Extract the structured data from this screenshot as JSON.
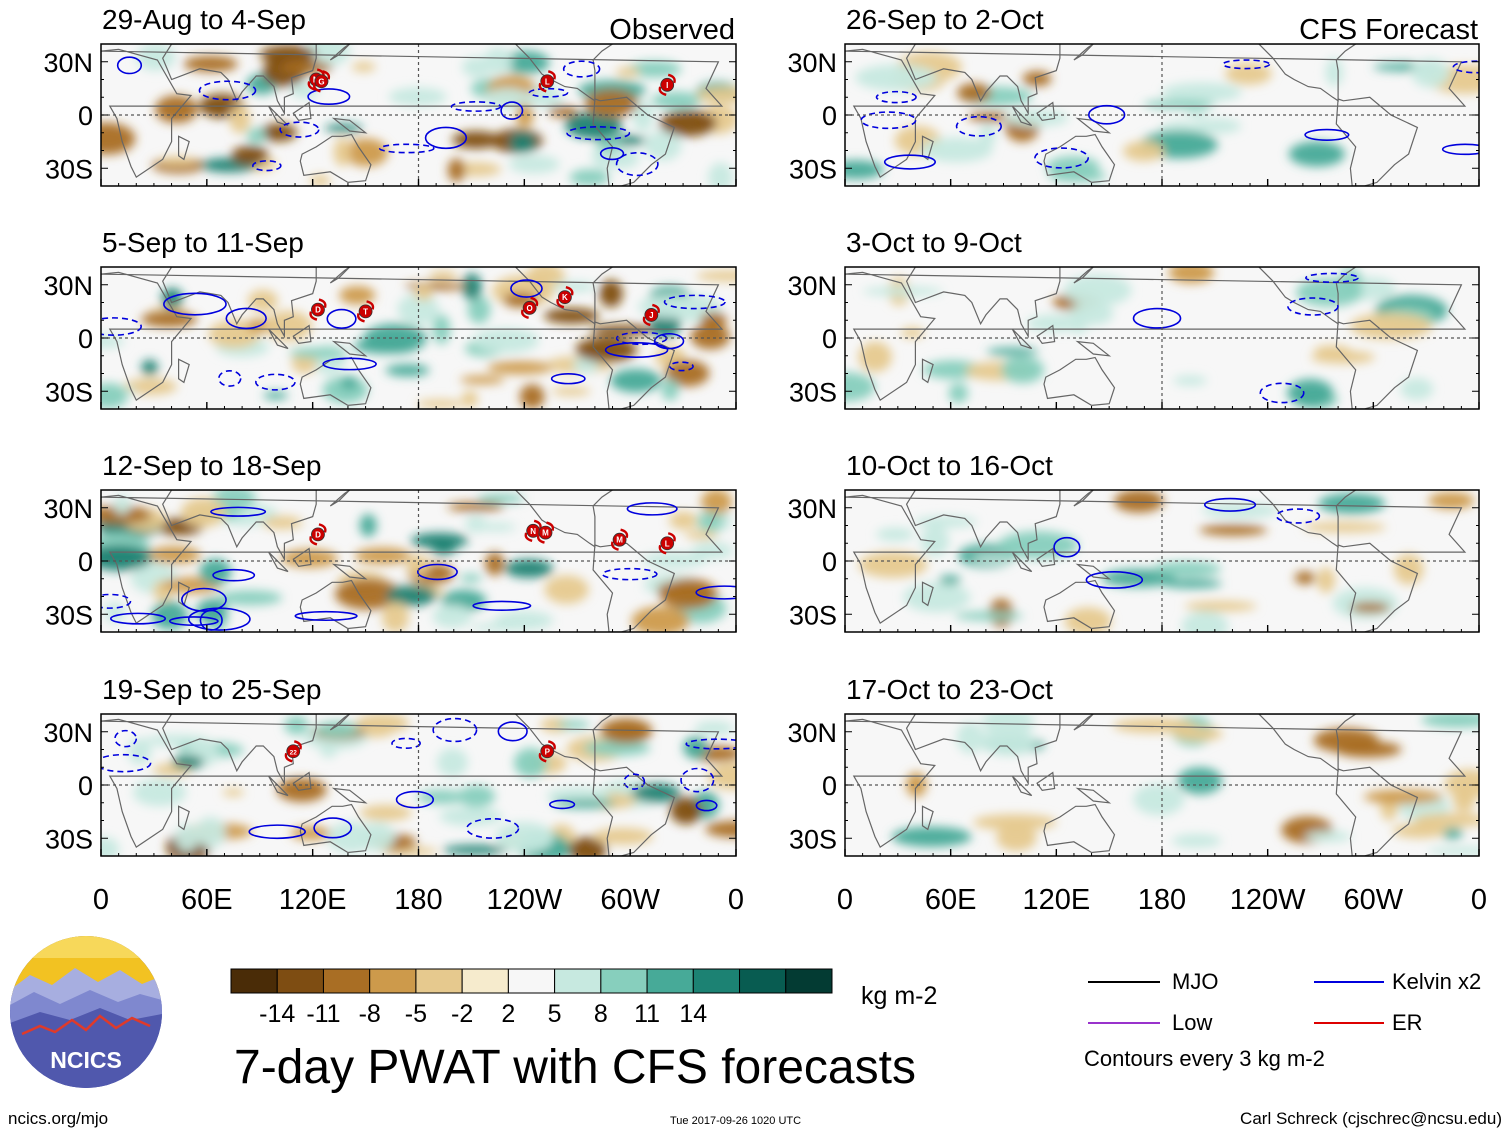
{
  "chart_data": {
    "type": "heatmap",
    "title": "7-day PWAT with CFS forecasts",
    "column_titles": {
      "left": "Observed",
      "right": "CFS Forecast"
    },
    "x_tick_labels": [
      "0",
      "60E",
      "120E",
      "180",
      "120W",
      "60W",
      "0"
    ],
    "y_tick_labels": [
      "30N",
      "0",
      "30S"
    ],
    "x_range_deg_east": [
      0,
      360
    ],
    "y_range_deg_lat": [
      -40,
      40
    ],
    "dashed_reference_lines": {
      "longitude_deg_east": 180,
      "latitude_deg": 0
    },
    "panels": [
      {
        "period": "29-Aug to 4-Sep",
        "column": "left",
        "kind": "observed",
        "storms": [
          {
            "label": "M",
            "lon": 122,
            "lat": 20
          },
          {
            "label": "G",
            "lon": 125,
            "lat": 19
          },
          {
            "label": "L",
            "lon": 253,
            "lat": 19
          },
          {
            "label": "I",
            "lon": 321,
            "lat": 17
          }
        ]
      },
      {
        "period": "5-Sep to 11-Sep",
        "column": "left",
        "kind": "observed",
        "storms": [
          {
            "label": "D",
            "lon": 123,
            "lat": 16
          },
          {
            "label": "T",
            "lon": 150,
            "lat": 15
          },
          {
            "label": "O",
            "lon": 243,
            "lat": 17
          },
          {
            "label": "K",
            "lon": 263,
            "lat": 23
          },
          {
            "label": "J",
            "lon": 312,
            "lat": 13
          }
        ]
      },
      {
        "period": "12-Sep to 18-Sep",
        "column": "left",
        "kind": "observed",
        "storms": [
          {
            "label": "D",
            "lon": 123,
            "lat": 15
          },
          {
            "label": "N",
            "lon": 245,
            "lat": 17
          },
          {
            "label": "M",
            "lon": 252,
            "lat": 16
          },
          {
            "label": "M",
            "lon": 294,
            "lat": 12
          },
          {
            "label": "L",
            "lon": 321,
            "lat": 10
          }
        ]
      },
      {
        "period": "19-Sep to 25-Sep",
        "column": "left",
        "kind": "observed",
        "storms": [
          {
            "label": "22",
            "lon": 109,
            "lat": 19
          },
          {
            "label": "P",
            "lon": 253,
            "lat": 19
          }
        ]
      },
      {
        "period": "26-Sep to 2-Oct",
        "column": "right",
        "kind": "forecast",
        "storms": []
      },
      {
        "period": "3-Oct to 9-Oct",
        "column": "right",
        "kind": "forecast",
        "storms": []
      },
      {
        "period": "10-Oct to 16-Oct",
        "column": "right",
        "kind": "forecast",
        "storms": []
      },
      {
        "period": "17-Oct to 23-Oct",
        "column": "right",
        "kind": "forecast",
        "storms": []
      }
    ],
    "colorbar": {
      "units": "kg m-2",
      "tick_labels": [
        "-14",
        "-11",
        "-8",
        "-5",
        "-2",
        "2",
        "5",
        "8",
        "11",
        "14"
      ],
      "colors": [
        "#4a2c07",
        "#7e4d12",
        "#a96e24",
        "#cd9a4b",
        "#e6c98e",
        "#f6ebcd",
        "#f7f7f7",
        "#c7e9e0",
        "#87cfbd",
        "#47aa98",
        "#1c8273",
        "#085c51",
        "#033b33"
      ]
    },
    "contour_legend": [
      {
        "label": "MJO",
        "color": "#000000"
      },
      {
        "label": "Kelvin x2",
        "color": "#0000dd"
      },
      {
        "label": "Low",
        "color": "#9933cc"
      },
      {
        "label": "ER",
        "color": "#dd0000"
      }
    ],
    "contour_note": "Contours every 3 kg m-2"
  },
  "branding": {
    "logo_text": "NCICS",
    "site": "ncics.org/mjo"
  },
  "timestamp": "Tue 2017-09-26 1020 UTC",
  "credit": "Carl Schreck (cjschrec@ncsu.edu)"
}
